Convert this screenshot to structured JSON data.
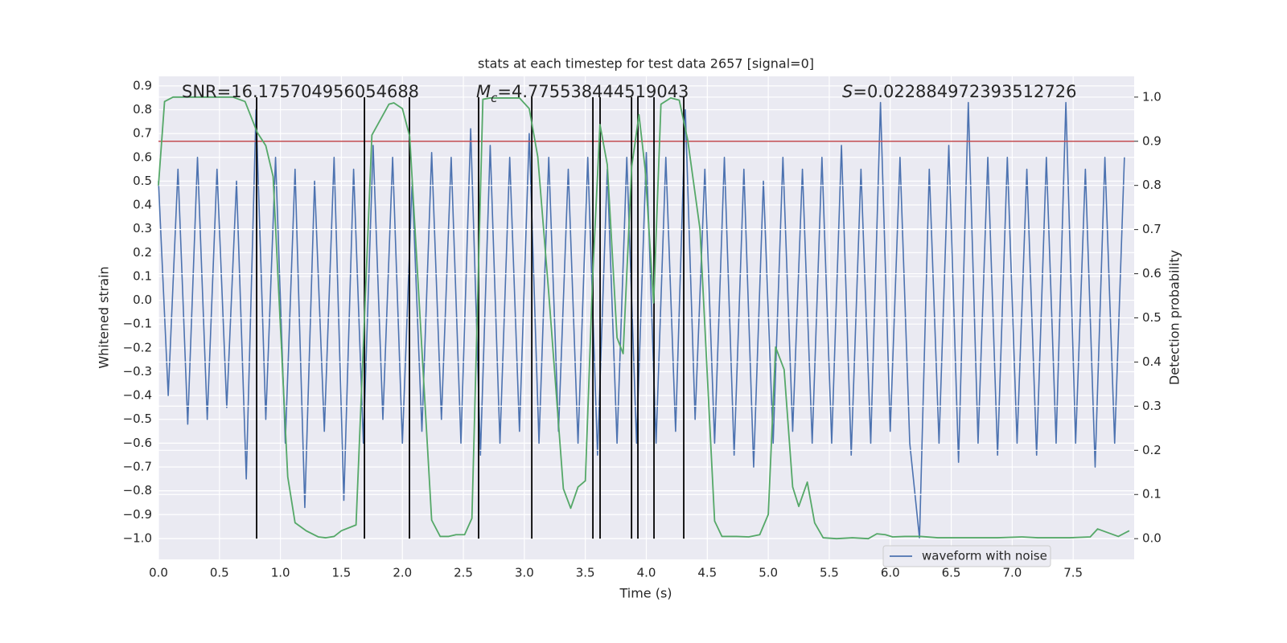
{
  "chart_data": {
    "type": "line",
    "title": "stats at each timestep for test data 2657 [signal=0]",
    "xlabel": "Time (s)",
    "ylabel": "Whitened strain",
    "y2label": "Detection probability",
    "annotations": [
      {
        "text": "SNR=16.175704956054688"
      },
      {
        "symbol": "M",
        "subscript": "c",
        "text": "=4.775538444519043"
      },
      {
        "symbol": "S",
        "text": "=0.022884972393512726"
      }
    ],
    "xlim": [
      0,
      8.0
    ],
    "ylim": [
      -1.088,
      0.94
    ],
    "y2lim": [
      -0.047,
      1.047
    ],
    "xticks": [
      {
        "value": 0,
        "label": "0.0"
      },
      0.5,
      {
        "value": 1,
        "label": "1.0"
      },
      1.5,
      {
        "value": 2,
        "label": "2.0"
      },
      2.5,
      {
        "value": 3,
        "label": "3.0"
      },
      3.5,
      {
        "value": 4,
        "label": "4.0"
      },
      4.5,
      {
        "value": 5,
        "label": "5.0"
      },
      5.5,
      {
        "value": 6,
        "label": "6.0"
      },
      6.5,
      {
        "value": 7,
        "label": "7.0"
      },
      7.5
    ],
    "yticks": [
      {
        "value": -1.0,
        "label": "−1.0"
      },
      {
        "value": -0.9,
        "label": "−0.9"
      },
      {
        "value": -0.8,
        "label": "−0.8"
      },
      {
        "value": -0.7,
        "label": "−0.7"
      },
      {
        "value": -0.6,
        "label": "−0.6"
      },
      {
        "value": -0.5,
        "label": "−0.5"
      },
      {
        "value": -0.4,
        "label": "−0.4"
      },
      {
        "value": -0.3,
        "label": "−0.3"
      },
      {
        "value": -0.2,
        "label": "−0.2"
      },
      {
        "value": -0.1,
        "label": "−0.1"
      },
      {
        "value": 0,
        "label": "0.0"
      },
      0.1,
      0.2,
      0.3,
      0.4,
      0.5,
      0.6,
      0.7,
      0.8,
      0.9
    ],
    "y2ticks": [
      {
        "value": 0,
        "label": "0.0"
      },
      0.1,
      0.2,
      0.3,
      0.4,
      0.5,
      0.6,
      0.7,
      0.8,
      0.9,
      {
        "value": 1,
        "label": "1.0"
      }
    ],
    "grid": true,
    "legend": "lower right",
    "x": [
      0,
      0.08,
      0.16,
      0.24,
      0.32,
      0.4,
      0.48,
      0.56,
      0.64,
      0.72,
      0.8,
      0.88,
      0.96,
      1.04,
      1.12,
      1.2,
      1.28,
      1.36,
      1.44,
      1.52,
      1.6,
      1.68,
      1.76,
      1.84,
      1.92,
      2.0,
      2.08,
      2.16,
      2.24,
      2.32,
      2.4,
      2.48,
      2.56,
      2.64,
      2.72,
      2.8,
      2.88,
      2.96,
      3.04,
      3.12,
      3.2,
      3.28,
      3.36,
      3.44,
      3.52,
      3.6,
      3.68,
      3.76,
      3.84,
      3.92,
      4.0,
      4.08,
      4.16,
      4.24,
      4.32,
      4.4,
      4.48,
      4.56,
      4.64,
      4.72,
      4.8,
      4.88,
      4.96,
      5.04,
      5.12,
      5.2,
      5.28,
      5.36,
      5.44,
      5.52,
      5.6,
      5.68,
      5.76,
      5.84,
      5.92,
      6.0,
      6.08,
      6.16,
      6.24,
      6.32,
      6.4,
      6.48,
      6.56,
      6.64,
      6.72,
      6.8,
      6.88,
      6.96,
      7.04,
      7.12,
      7.2,
      7.28,
      7.36,
      7.44,
      7.52,
      7.6,
      7.68,
      7.76,
      7.84,
      7.92
    ],
    "series": [
      {
        "name": "waveform with noise",
        "color": "#4c72b0",
        "values": [
          0.5,
          -0.4,
          0.55,
          -0.52,
          0.6,
          -0.5,
          0.55,
          -0.45,
          0.5,
          -0.75,
          0.8,
          -0.5,
          0.6,
          -0.6,
          0.55,
          -0.87,
          0.5,
          -0.55,
          0.6,
          -0.84,
          0.55,
          -0.6,
          0.65,
          -0.5,
          0.6,
          -0.6,
          0.5,
          -0.55,
          0.62,
          -0.5,
          0.6,
          -0.6,
          0.72,
          -0.65,
          0.65,
          -0.6,
          0.6,
          -0.55,
          0.7,
          -0.6,
          0.6,
          -0.55,
          0.55,
          -0.6,
          0.6,
          -0.65,
          0.55,
          -0.6,
          0.6,
          -0.6,
          0.62,
          -0.6,
          0.6,
          -0.55,
          0.8,
          -0.5,
          0.55,
          -0.6,
          0.6,
          -0.65,
          0.55,
          -0.7,
          0.5,
          -0.6,
          0.6,
          -0.55,
          0.55,
          -0.6,
          0.6,
          -0.6,
          0.65,
          -0.65,
          0.55,
          -0.6,
          0.83,
          -0.55,
          0.6,
          -0.6,
          -1.0,
          0.55,
          -0.6,
          0.65,
          -0.68,
          0.83,
          -0.6,
          0.6,
          -0.65,
          0.6,
          -0.6,
          0.55,
          -0.65,
          0.6,
          -0.6,
          0.83,
          -0.6,
          0.55,
          -0.7,
          0.6,
          -0.6,
          0.6
        ]
      },
      {
        "color": "#55a868",
        "axis": "y2",
        "x": [
          0,
          0.05,
          0.12,
          0.61,
          0.71,
          0.81,
          0.88,
          0.94,
          1.06,
          1.12,
          1.21,
          1.31,
          1.37,
          1.44,
          1.5,
          1.62,
          1.75,
          1.89,
          1.93,
          2.0,
          2.06,
          2.24,
          2.31,
          2.38,
          2.44,
          2.51,
          2.57,
          2.66,
          2.72,
          2.96,
          3.04,
          3.11,
          3.2,
          3.32,
          3.38,
          3.44,
          3.5,
          3.56,
          3.62,
          3.68,
          3.76,
          3.81,
          3.88,
          3.94,
          3.99,
          4.06,
          4.12,
          4.2,
          4.27,
          4.34,
          4.44,
          4.56,
          4.62,
          4.74,
          4.84,
          4.93,
          5.0,
          5.06,
          5.13,
          5.2,
          5.25,
          5.32,
          5.38,
          5.45,
          5.56,
          5.69,
          5.82,
          5.89,
          5.96,
          6.02,
          6.12,
          6.25,
          6.39,
          6.62,
          6.88,
          7.08,
          7.21,
          7.47,
          7.64,
          7.7,
          7.77,
          7.87,
          7.96
        ],
        "values": [
          0.8,
          0.99,
          1.0,
          1.0,
          0.99,
          0.92,
          0.89,
          0.82,
          0.14,
          0.036,
          0.018,
          0.004,
          0.002,
          0.005,
          0.018,
          0.031,
          0.914,
          0.984,
          0.987,
          0.974,
          0.911,
          0.042,
          0.005,
          0.005,
          0.009,
          0.009,
          0.046,
          0.995,
          0.998,
          0.998,
          0.974,
          0.865,
          0.556,
          0.113,
          0.069,
          0.117,
          0.131,
          0.592,
          0.938,
          0.847,
          0.455,
          0.419,
          0.842,
          0.96,
          0.838,
          0.534,
          0.984,
          0.998,
          0.993,
          0.902,
          0.701,
          0.04,
          0.005,
          0.005,
          0.004,
          0.009,
          0.055,
          0.434,
          0.383,
          0.117,
          0.073,
          0.128,
          0.036,
          0.002,
          0.0,
          0.002,
          0.0,
          0.011,
          0.009,
          0.004,
          0.005,
          0.005,
          0.002,
          0.002,
          0.002,
          0.004,
          0.002,
          0.002,
          0.004,
          0.022,
          0.015,
          0.005,
          0.018
        ]
      }
    ],
    "threshold": {
      "value": 0.9,
      "axis": "y2",
      "color": "#c44e52"
    },
    "events": {
      "x": [
        0.805,
        1.689,
        2.058,
        2.625,
        3.061,
        3.562,
        3.621,
        3.879,
        3.931,
        4.063,
        4.307
      ],
      "span": [
        0,
        1
      ],
      "axis": "y2",
      "color": "#000000"
    }
  }
}
